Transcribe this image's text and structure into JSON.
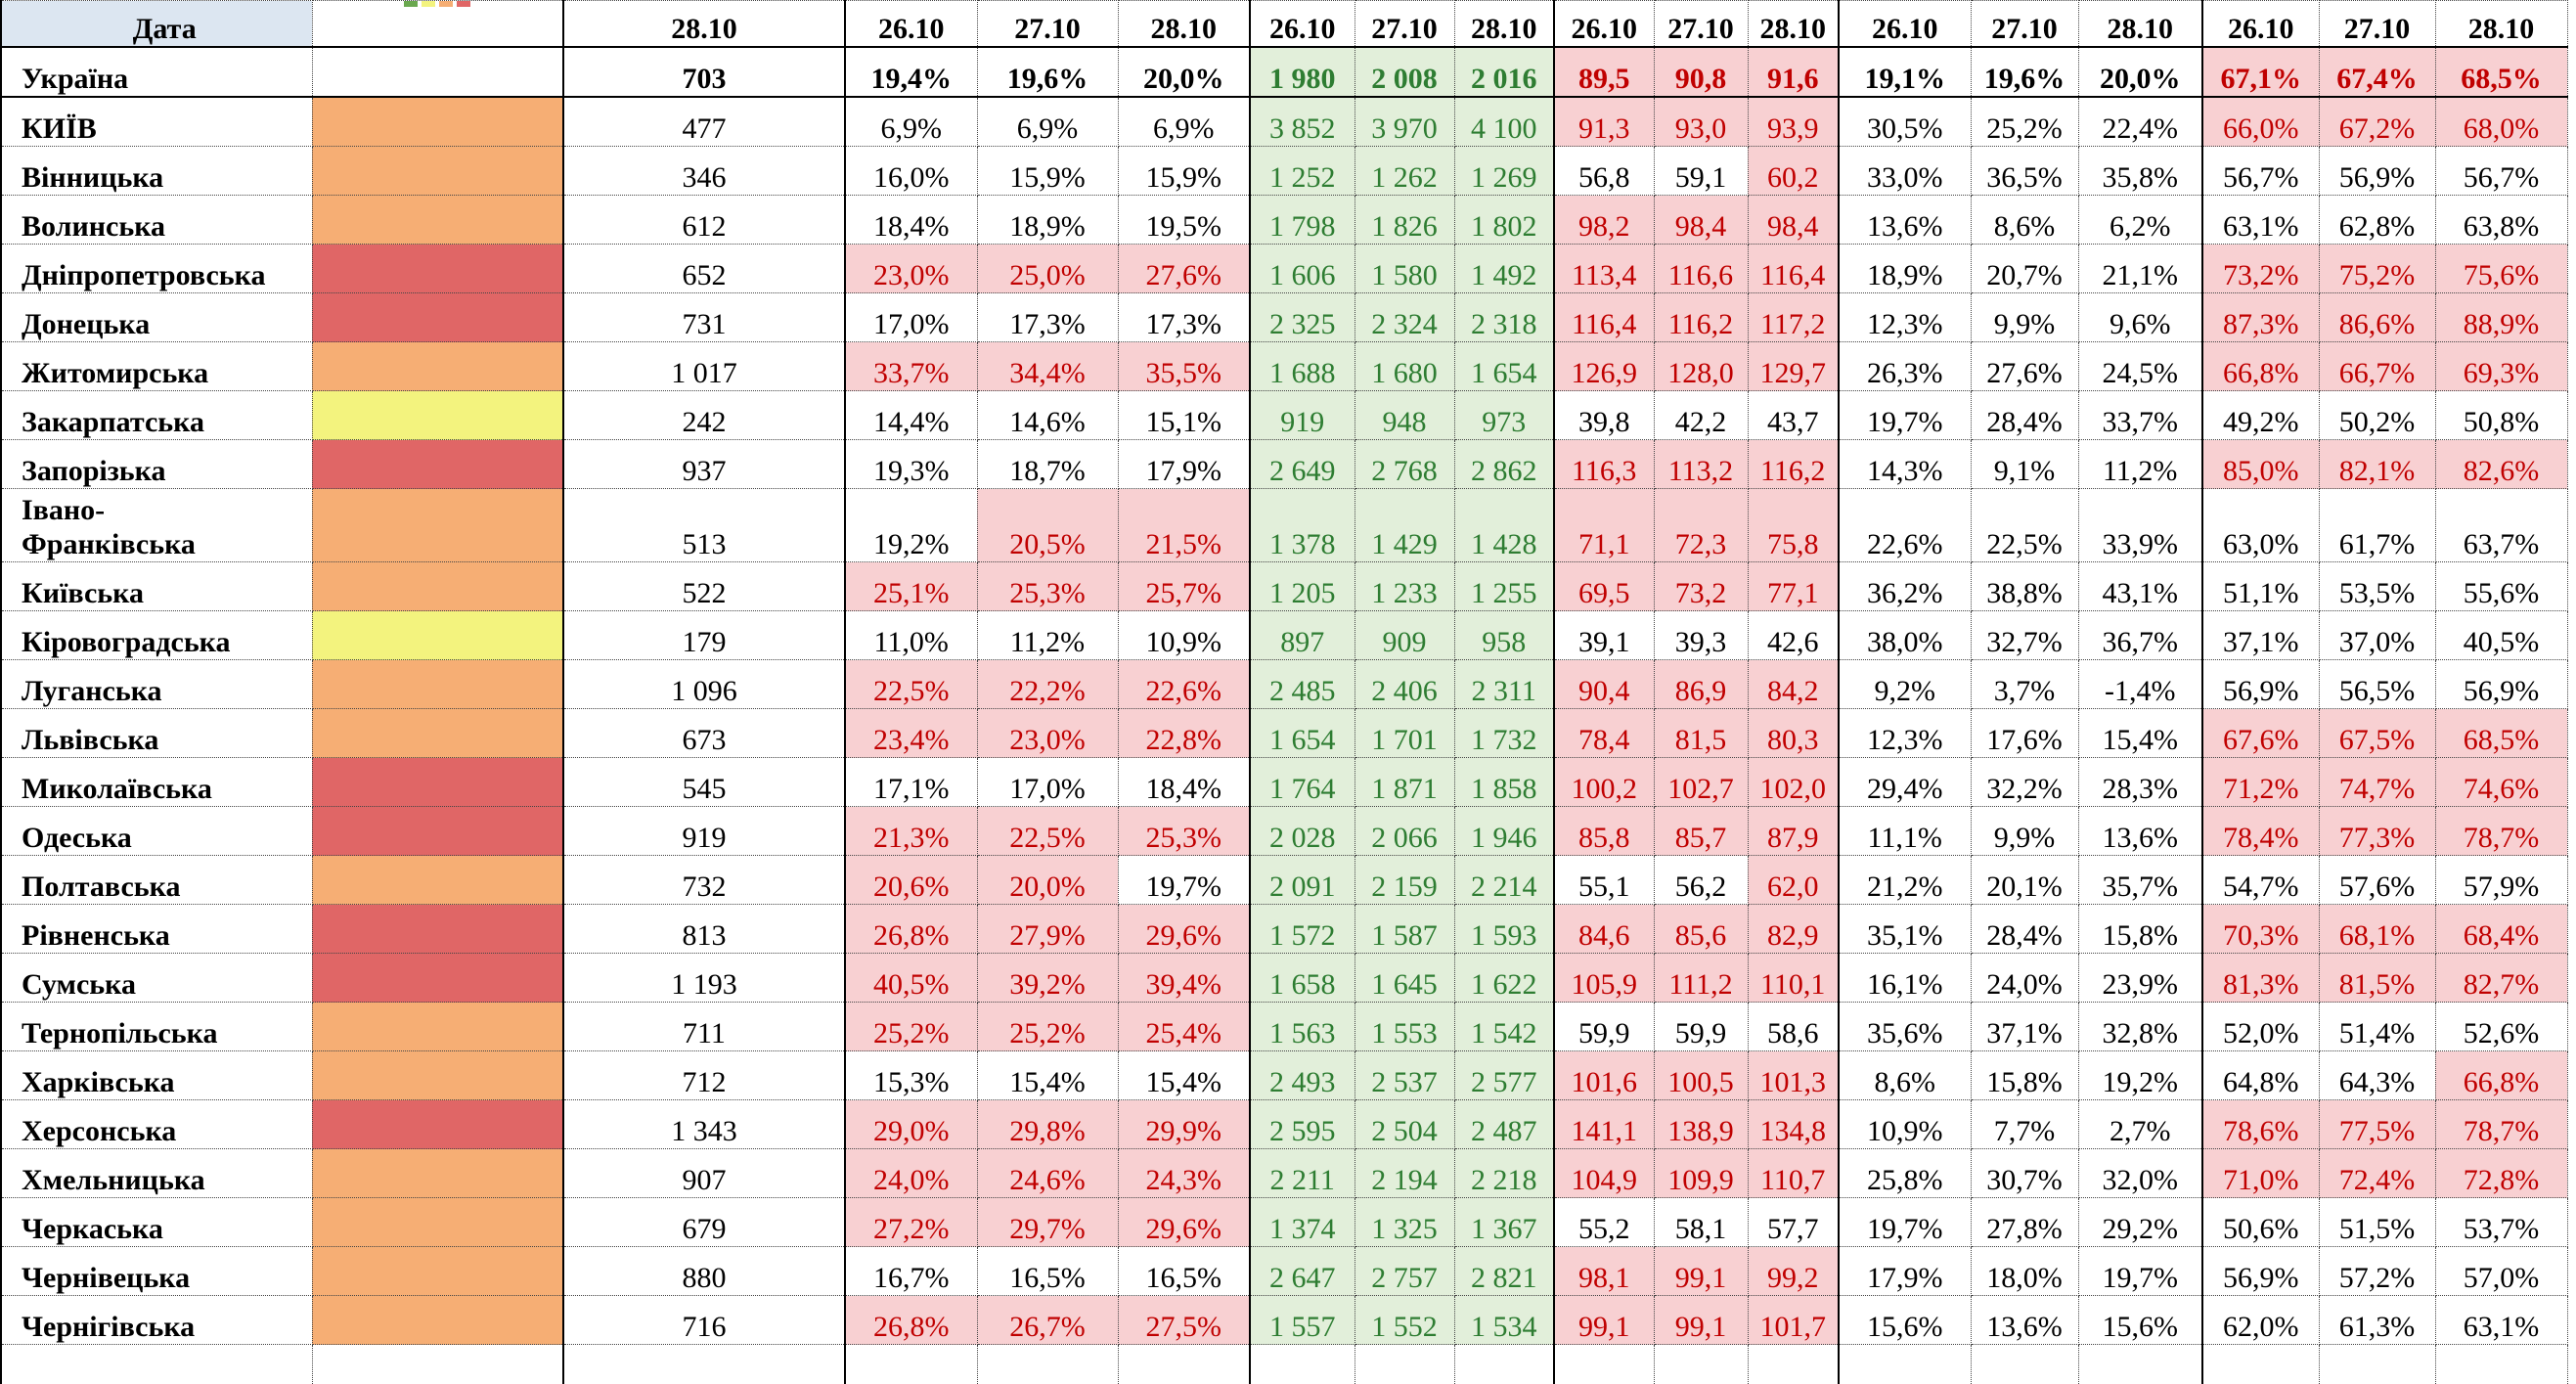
{
  "header": {
    "label": "Дата",
    "dates": [
      "28.10",
      "26.10",
      "27.10",
      "28.10",
      "26.10",
      "27.10",
      "28.10",
      "26.10",
      "27.10",
      "28.10",
      "26.10",
      "27.10",
      "28.10",
      "26.10",
      "27.10",
      "28.10"
    ]
  },
  "zone_colors": {
    "orange": "#f6ae74",
    "red": "#e06666",
    "yellow": "#f3f37e",
    "none": "#ffffff"
  },
  "rows": [
    {
      "name": "Україна",
      "zone": "none",
      "values": [
        "703",
        "19,4%",
        "19,6%",
        "20,0%",
        "1 980",
        "2 008",
        "2 016",
        "89,5",
        "90,8",
        "91,6",
        "19,1%",
        "19,6%",
        "20,0%",
        "67,1%",
        "67,4%",
        "68,5%"
      ]
    },
    {
      "name": "КИЇВ",
      "zone": "orange",
      "values": [
        "477",
        "6,9%",
        "6,9%",
        "6,9%",
        "3 852",
        "3 970",
        "4 100",
        "91,3",
        "93,0",
        "93,9",
        "30,5%",
        "25,2%",
        "22,4%",
        "66,0%",
        "67,2%",
        "68,0%"
      ]
    },
    {
      "name": "Вінницька",
      "zone": "orange",
      "values": [
        "346",
        "16,0%",
        "15,9%",
        "15,9%",
        "1 252",
        "1 262",
        "1 269",
        "56,8",
        "59,1",
        "60,2",
        "33,0%",
        "36,5%",
        "35,8%",
        "56,7%",
        "56,9%",
        "56,7%"
      ]
    },
    {
      "name": "Волинська",
      "zone": "orange",
      "values": [
        "612",
        "18,4%",
        "18,9%",
        "19,5%",
        "1 798",
        "1 826",
        "1 802",
        "98,2",
        "98,4",
        "98,4",
        "13,6%",
        "8,6%",
        "6,2%",
        "63,1%",
        "62,8%",
        "63,8%"
      ]
    },
    {
      "name": "Дніпропетровська",
      "zone": "red",
      "values": [
        "652",
        "23,0%",
        "25,0%",
        "27,6%",
        "1 606",
        "1 580",
        "1 492",
        "113,4",
        "116,6",
        "116,4",
        "18,9%",
        "20,7%",
        "21,1%",
        "73,2%",
        "75,2%",
        "75,6%"
      ]
    },
    {
      "name": "Донецька",
      "zone": "red",
      "values": [
        "731",
        "17,0%",
        "17,3%",
        "17,3%",
        "2 325",
        "2 324",
        "2 318",
        "116,4",
        "116,2",
        "117,2",
        "12,3%",
        "9,9%",
        "9,6%",
        "87,3%",
        "86,6%",
        "88,9%"
      ]
    },
    {
      "name": "Житомирська",
      "zone": "orange",
      "values": [
        "1 017",
        "33,7%",
        "34,4%",
        "35,5%",
        "1 688",
        "1 680",
        "1 654",
        "126,9",
        "128,0",
        "129,7",
        "26,3%",
        "27,6%",
        "24,5%",
        "66,8%",
        "66,7%",
        "69,3%"
      ]
    },
    {
      "name": "Закарпатська",
      "zone": "yellow",
      "values": [
        "242",
        "14,4%",
        "14,6%",
        "15,1%",
        "919",
        "948",
        "973",
        "39,8",
        "42,2",
        "43,7",
        "19,7%",
        "28,4%",
        "33,7%",
        "49,2%",
        "50,2%",
        "50,8%"
      ]
    },
    {
      "name": "Запорізька",
      "zone": "red",
      "values": [
        "937",
        "19,3%",
        "18,7%",
        "17,9%",
        "2 649",
        "2 768",
        "2 862",
        "116,3",
        "113,2",
        "116,2",
        "14,3%",
        "9,1%",
        "11,2%",
        "85,0%",
        "82,1%",
        "82,6%"
      ]
    },
    {
      "name": "Івано-\nФранківська",
      "zone": "orange",
      "values": [
        "513",
        "19,2%",
        "20,5%",
        "21,5%",
        "1 378",
        "1 429",
        "1 428",
        "71,1",
        "72,3",
        "75,8",
        "22,6%",
        "22,5%",
        "33,9%",
        "63,0%",
        "61,7%",
        "63,7%"
      ]
    },
    {
      "name": "Київська",
      "zone": "orange",
      "values": [
        "522",
        "25,1%",
        "25,3%",
        "25,7%",
        "1 205",
        "1 233",
        "1 255",
        "69,5",
        "73,2",
        "77,1",
        "36,2%",
        "38,8%",
        "43,1%",
        "51,1%",
        "53,5%",
        "55,6%"
      ]
    },
    {
      "name": "Кіровоградська",
      "zone": "yellow",
      "values": [
        "179",
        "11,0%",
        "11,2%",
        "10,9%",
        "897",
        "909",
        "958",
        "39,1",
        "39,3",
        "42,6",
        "38,0%",
        "32,7%",
        "36,7%",
        "37,1%",
        "37,0%",
        "40,5%"
      ]
    },
    {
      "name": "Луганська",
      "zone": "orange",
      "values": [
        "1 096",
        "22,5%",
        "22,2%",
        "22,6%",
        "2 485",
        "2 406",
        "2 311",
        "90,4",
        "86,9",
        "84,2",
        "9,2%",
        "3,7%",
        "-1,4%",
        "56,9%",
        "56,5%",
        "56,9%"
      ]
    },
    {
      "name": "Львівська",
      "zone": "orange",
      "values": [
        "673",
        "23,4%",
        "23,0%",
        "22,8%",
        "1 654",
        "1 701",
        "1 732",
        "78,4",
        "81,5",
        "80,3",
        "12,3%",
        "17,6%",
        "15,4%",
        "67,6%",
        "67,5%",
        "68,5%"
      ]
    },
    {
      "name": "Миколаївська",
      "zone": "red",
      "values": [
        "545",
        "17,1%",
        "17,0%",
        "18,4%",
        "1 764",
        "1 871",
        "1 858",
        "100,2",
        "102,7",
        "102,0",
        "29,4%",
        "32,2%",
        "28,3%",
        "71,2%",
        "74,7%",
        "74,6%"
      ]
    },
    {
      "name": "Одеська",
      "zone": "red",
      "values": [
        "919",
        "21,3%",
        "22,5%",
        "25,3%",
        "2 028",
        "2 066",
        "1 946",
        "85,8",
        "85,7",
        "87,9",
        "11,1%",
        "9,9%",
        "13,6%",
        "78,4%",
        "77,3%",
        "78,7%"
      ]
    },
    {
      "name": "Полтавська",
      "zone": "orange",
      "values": [
        "732",
        "20,6%",
        "20,0%",
        "19,7%",
        "2 091",
        "2 159",
        "2 214",
        "55,1",
        "56,2",
        "62,0",
        "21,2%",
        "20,1%",
        "35,7%",
        "54,7%",
        "57,6%",
        "57,9%"
      ]
    },
    {
      "name": "Рівненська",
      "zone": "red",
      "values": [
        "813",
        "26,8%",
        "27,9%",
        "29,6%",
        "1 572",
        "1 587",
        "1 593",
        "84,6",
        "85,6",
        "82,9",
        "35,1%",
        "28,4%",
        "15,8%",
        "70,3%",
        "68,1%",
        "68,4%"
      ]
    },
    {
      "name": "Сумська",
      "zone": "red",
      "values": [
        "1 193",
        "40,5%",
        "39,2%",
        "39,4%",
        "1 658",
        "1 645",
        "1 622",
        "105,9",
        "111,2",
        "110,1",
        "16,1%",
        "24,0%",
        "23,9%",
        "81,3%",
        "81,5%",
        "82,7%"
      ]
    },
    {
      "name": "Тернопільська",
      "zone": "orange",
      "values": [
        "711",
        "25,2%",
        "25,2%",
        "25,4%",
        "1 563",
        "1 553",
        "1 542",
        "59,9",
        "59,9",
        "58,6",
        "35,6%",
        "37,1%",
        "32,8%",
        "52,0%",
        "51,4%",
        "52,6%"
      ]
    },
    {
      "name": "Харківська",
      "zone": "orange",
      "values": [
        "712",
        "15,3%",
        "15,4%",
        "15,4%",
        "2 493",
        "2 537",
        "2 577",
        "101,6",
        "100,5",
        "101,3",
        "8,6%",
        "15,8%",
        "19,2%",
        "64,8%",
        "64,3%",
        "66,8%"
      ]
    },
    {
      "name": "Херсонська",
      "zone": "red",
      "values": [
        "1 343",
        "29,0%",
        "29,8%",
        "29,9%",
        "2 595",
        "2 504",
        "2 487",
        "141,1",
        "138,9",
        "134,8",
        "10,9%",
        "7,7%",
        "2,7%",
        "78,6%",
        "77,5%",
        "78,7%"
      ]
    },
    {
      "name": "Хмельницька",
      "zone": "orange",
      "values": [
        "907",
        "24,0%",
        "24,6%",
        "24,3%",
        "2 211",
        "2 194",
        "2 218",
        "104,9",
        "109,9",
        "110,7",
        "25,8%",
        "30,7%",
        "32,0%",
        "71,0%",
        "72,4%",
        "72,8%"
      ]
    },
    {
      "name": "Черкаська",
      "zone": "orange",
      "values": [
        "679",
        "27,2%",
        "29,7%",
        "29,6%",
        "1 374",
        "1 325",
        "1 367",
        "55,2",
        "58,1",
        "57,7",
        "19,7%",
        "27,8%",
        "29,2%",
        "50,6%",
        "51,5%",
        "53,7%"
      ]
    },
    {
      "name": "Чернівецька",
      "zone": "orange",
      "values": [
        "880",
        "16,7%",
        "16,5%",
        "16,5%",
        "2 647",
        "2 757",
        "2 821",
        "98,1",
        "99,1",
        "99,2",
        "17,9%",
        "18,0%",
        "19,7%",
        "56,9%",
        "57,2%",
        "57,0%"
      ]
    },
    {
      "name": "Чернігівська",
      "zone": "orange",
      "values": [
        "716",
        "26,8%",
        "26,7%",
        "27,5%",
        "1 557",
        "1 552",
        "1 534",
        "99,1",
        "99,1",
        "101,7",
        "15,6%",
        "13,6%",
        "15,6%",
        "62,0%",
        "61,3%",
        "63,1%"
      ]
    }
  ]
}
